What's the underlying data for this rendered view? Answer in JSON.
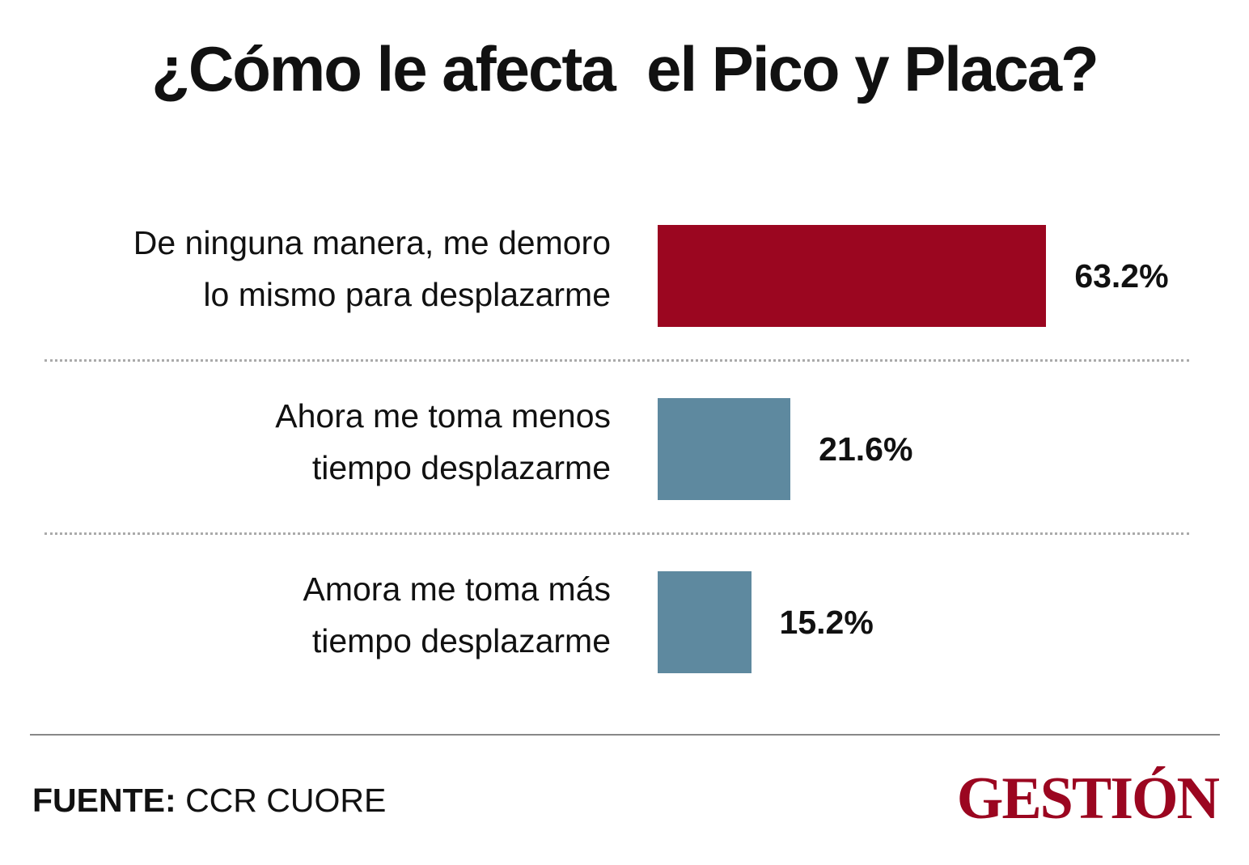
{
  "chart_data": {
    "type": "bar",
    "orientation": "horizontal",
    "title": "¿Cómo le afecta  el Pico y Placa?",
    "categories": [
      [
        "De ninguna manera, me demoro",
        "lo mismo para desplazarme"
      ],
      [
        "Ahora me toma menos",
        "tiempo desplazarme"
      ],
      [
        "Amora me toma más",
        "tiempo desplazarme"
      ]
    ],
    "values": [
      63.2,
      21.6,
      15.2
    ],
    "value_labels": [
      "63.2%",
      "21.6%",
      "15.2%"
    ],
    "colors": [
      "#9b0620",
      "#5e899f",
      "#5e899f"
    ],
    "source_label": "FUENTE:",
    "source": "CCR CUORE",
    "logo": "GESTIÓN"
  }
}
